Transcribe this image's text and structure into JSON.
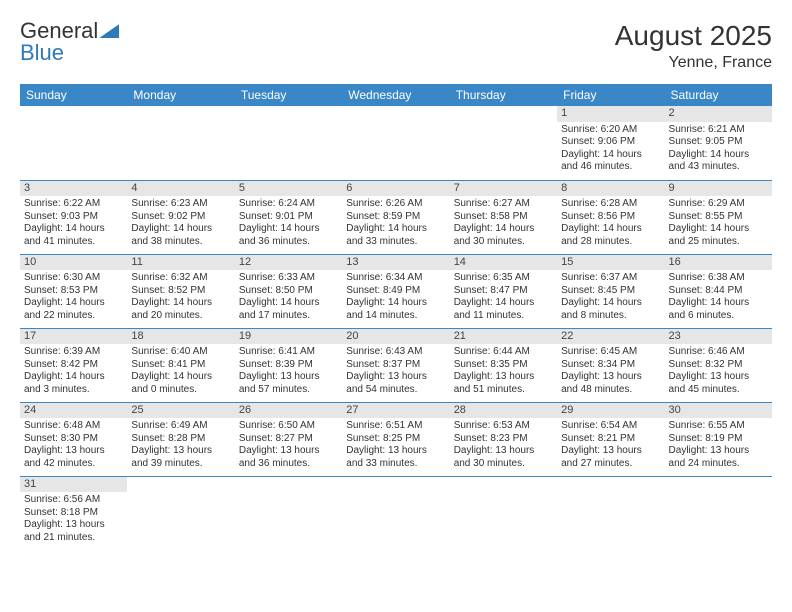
{
  "logo": {
    "word1": "General",
    "word2": "Blue"
  },
  "title": {
    "month": "August 2025",
    "location": "Yenne, France"
  },
  "styles": {
    "header_bg": "#3a87c7",
    "header_fg": "#ffffff",
    "daynum_bg": "#e6e6e6",
    "daynum_fg": "#444444",
    "body_fg": "#333333",
    "row_border": "#3a87c7",
    "page_bg": "#ffffff",
    "title_fontsize": 28,
    "location_fontsize": 16,
    "head_fontsize": 12,
    "cell_fontsize": 10
  },
  "weekdays": [
    "Sunday",
    "Monday",
    "Tuesday",
    "Wednesday",
    "Thursday",
    "Friday",
    "Saturday"
  ],
  "weeks": [
    [
      null,
      null,
      null,
      null,
      null,
      {
        "n": "1",
        "sunrise": "Sunrise: 6:20 AM",
        "sunset": "Sunset: 9:06 PM",
        "day1": "Daylight: 14 hours",
        "day2": "and 46 minutes."
      },
      {
        "n": "2",
        "sunrise": "Sunrise: 6:21 AM",
        "sunset": "Sunset: 9:05 PM",
        "day1": "Daylight: 14 hours",
        "day2": "and 43 minutes."
      }
    ],
    [
      {
        "n": "3",
        "sunrise": "Sunrise: 6:22 AM",
        "sunset": "Sunset: 9:03 PM",
        "day1": "Daylight: 14 hours",
        "day2": "and 41 minutes."
      },
      {
        "n": "4",
        "sunrise": "Sunrise: 6:23 AM",
        "sunset": "Sunset: 9:02 PM",
        "day1": "Daylight: 14 hours",
        "day2": "and 38 minutes."
      },
      {
        "n": "5",
        "sunrise": "Sunrise: 6:24 AM",
        "sunset": "Sunset: 9:01 PM",
        "day1": "Daylight: 14 hours",
        "day2": "and 36 minutes."
      },
      {
        "n": "6",
        "sunrise": "Sunrise: 6:26 AM",
        "sunset": "Sunset: 8:59 PM",
        "day1": "Daylight: 14 hours",
        "day2": "and 33 minutes."
      },
      {
        "n": "7",
        "sunrise": "Sunrise: 6:27 AM",
        "sunset": "Sunset: 8:58 PM",
        "day1": "Daylight: 14 hours",
        "day2": "and 30 minutes."
      },
      {
        "n": "8",
        "sunrise": "Sunrise: 6:28 AM",
        "sunset": "Sunset: 8:56 PM",
        "day1": "Daylight: 14 hours",
        "day2": "and 28 minutes."
      },
      {
        "n": "9",
        "sunrise": "Sunrise: 6:29 AM",
        "sunset": "Sunset: 8:55 PM",
        "day1": "Daylight: 14 hours",
        "day2": "and 25 minutes."
      }
    ],
    [
      {
        "n": "10",
        "sunrise": "Sunrise: 6:30 AM",
        "sunset": "Sunset: 8:53 PM",
        "day1": "Daylight: 14 hours",
        "day2": "and 22 minutes."
      },
      {
        "n": "11",
        "sunrise": "Sunrise: 6:32 AM",
        "sunset": "Sunset: 8:52 PM",
        "day1": "Daylight: 14 hours",
        "day2": "and 20 minutes."
      },
      {
        "n": "12",
        "sunrise": "Sunrise: 6:33 AM",
        "sunset": "Sunset: 8:50 PM",
        "day1": "Daylight: 14 hours",
        "day2": "and 17 minutes."
      },
      {
        "n": "13",
        "sunrise": "Sunrise: 6:34 AM",
        "sunset": "Sunset: 8:49 PM",
        "day1": "Daylight: 14 hours",
        "day2": "and 14 minutes."
      },
      {
        "n": "14",
        "sunrise": "Sunrise: 6:35 AM",
        "sunset": "Sunset: 8:47 PM",
        "day1": "Daylight: 14 hours",
        "day2": "and 11 minutes."
      },
      {
        "n": "15",
        "sunrise": "Sunrise: 6:37 AM",
        "sunset": "Sunset: 8:45 PM",
        "day1": "Daylight: 14 hours",
        "day2": "and 8 minutes."
      },
      {
        "n": "16",
        "sunrise": "Sunrise: 6:38 AM",
        "sunset": "Sunset: 8:44 PM",
        "day1": "Daylight: 14 hours",
        "day2": "and 6 minutes."
      }
    ],
    [
      {
        "n": "17",
        "sunrise": "Sunrise: 6:39 AM",
        "sunset": "Sunset: 8:42 PM",
        "day1": "Daylight: 14 hours",
        "day2": "and 3 minutes."
      },
      {
        "n": "18",
        "sunrise": "Sunrise: 6:40 AM",
        "sunset": "Sunset: 8:41 PM",
        "day1": "Daylight: 14 hours",
        "day2": "and 0 minutes."
      },
      {
        "n": "19",
        "sunrise": "Sunrise: 6:41 AM",
        "sunset": "Sunset: 8:39 PM",
        "day1": "Daylight: 13 hours",
        "day2": "and 57 minutes."
      },
      {
        "n": "20",
        "sunrise": "Sunrise: 6:43 AM",
        "sunset": "Sunset: 8:37 PM",
        "day1": "Daylight: 13 hours",
        "day2": "and 54 minutes."
      },
      {
        "n": "21",
        "sunrise": "Sunrise: 6:44 AM",
        "sunset": "Sunset: 8:35 PM",
        "day1": "Daylight: 13 hours",
        "day2": "and 51 minutes."
      },
      {
        "n": "22",
        "sunrise": "Sunrise: 6:45 AM",
        "sunset": "Sunset: 8:34 PM",
        "day1": "Daylight: 13 hours",
        "day2": "and 48 minutes."
      },
      {
        "n": "23",
        "sunrise": "Sunrise: 6:46 AM",
        "sunset": "Sunset: 8:32 PM",
        "day1": "Daylight: 13 hours",
        "day2": "and 45 minutes."
      }
    ],
    [
      {
        "n": "24",
        "sunrise": "Sunrise: 6:48 AM",
        "sunset": "Sunset: 8:30 PM",
        "day1": "Daylight: 13 hours",
        "day2": "and 42 minutes."
      },
      {
        "n": "25",
        "sunrise": "Sunrise: 6:49 AM",
        "sunset": "Sunset: 8:28 PM",
        "day1": "Daylight: 13 hours",
        "day2": "and 39 minutes."
      },
      {
        "n": "26",
        "sunrise": "Sunrise: 6:50 AM",
        "sunset": "Sunset: 8:27 PM",
        "day1": "Daylight: 13 hours",
        "day2": "and 36 minutes."
      },
      {
        "n": "27",
        "sunrise": "Sunrise: 6:51 AM",
        "sunset": "Sunset: 8:25 PM",
        "day1": "Daylight: 13 hours",
        "day2": "and 33 minutes."
      },
      {
        "n": "28",
        "sunrise": "Sunrise: 6:53 AM",
        "sunset": "Sunset: 8:23 PM",
        "day1": "Daylight: 13 hours",
        "day2": "and 30 minutes."
      },
      {
        "n": "29",
        "sunrise": "Sunrise: 6:54 AM",
        "sunset": "Sunset: 8:21 PM",
        "day1": "Daylight: 13 hours",
        "day2": "and 27 minutes."
      },
      {
        "n": "30",
        "sunrise": "Sunrise: 6:55 AM",
        "sunset": "Sunset: 8:19 PM",
        "day1": "Daylight: 13 hours",
        "day2": "and 24 minutes."
      }
    ],
    [
      {
        "n": "31",
        "sunrise": "Sunrise: 6:56 AM",
        "sunset": "Sunset: 8:18 PM",
        "day1": "Daylight: 13 hours",
        "day2": "and 21 minutes."
      },
      null,
      null,
      null,
      null,
      null,
      null
    ]
  ]
}
